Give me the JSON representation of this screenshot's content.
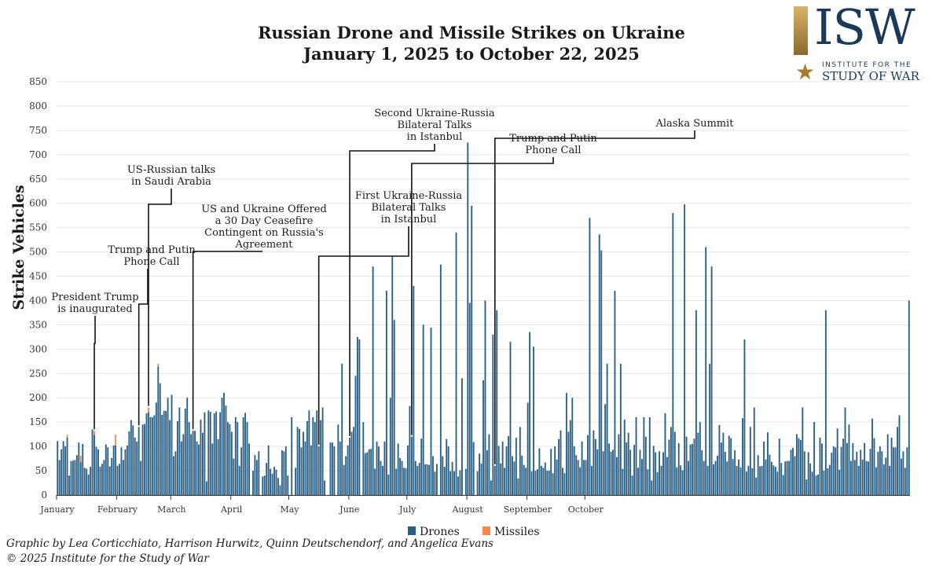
{
  "logo": {
    "letters": "ISW",
    "line1": "INSTITUTE FOR THE",
    "line2": "STUDY OF WAR",
    "star": "★"
  },
  "credits": {
    "line1": "Graphic by Lea Corticchiato, Harrison Hurwitz, Quinn Deutschendorf, and Angelica Evans",
    "line2": "© 2025 Institute for the Study of War"
  },
  "colors": {
    "drones": "#2a5f85",
    "missiles": "#f58a4c",
    "grid": "#e6e6e6"
  },
  "chart_data": {
    "type": "bar",
    "stacked": true,
    "title": [
      "Russian Drone and Missile Strikes on Ukraine",
      "January 1, 2025 to October 22, 2025"
    ],
    "xlabel": "",
    "ylabel": "Strike Vehicles",
    "ylim": [
      0,
      850
    ],
    "yticks": [
      0,
      50,
      100,
      150,
      200,
      250,
      300,
      350,
      400,
      450,
      500,
      550,
      600,
      650,
      700,
      750,
      800,
      850
    ],
    "start_date": "2025-01-01",
    "end_date": "2025-10-22",
    "month_labels": [
      {
        "label": "January",
        "day": 0
      },
      {
        "label": "February",
        "day": 31
      },
      {
        "label": "March",
        "day": 59
      },
      {
        "label": "April",
        "day": 90
      },
      {
        "label": "May",
        "day": 120
      },
      {
        "label": "June",
        "day": 151
      },
      {
        "label": "July",
        "day": 181
      },
      {
        "label": "August",
        "day": 212
      },
      {
        "label": "September",
        "day": 243
      },
      {
        "label": "October",
        "day": 273
      }
    ],
    "legend": [
      {
        "name": "Drones",
        "color": "#2a5f85"
      },
      {
        "name": "Missiles",
        "color": "#f58a4c"
      }
    ],
    "legend_position": "bottom-center",
    "series": [
      {
        "name": "Drones",
        "values": [
          111,
          72,
          94,
          111,
          100,
          118,
          40,
          70,
          70,
          72,
          82,
          108,
          68,
          105,
          56,
          54,
          42,
          58,
          135,
          124,
          99,
          94,
          58,
          64,
          72,
          104,
          98,
          59,
          76,
          102,
          102,
          60,
          64,
          98,
          72,
          94,
          102,
          131,
          154,
          143,
          118,
          110,
          140,
          70,
          145,
          146,
          168,
          170,
          160,
          160,
          164,
          190,
          264,
          230,
          165,
          173,
          173,
          200,
          154,
          206,
          80,
          90,
          152,
          180,
          110,
          125,
          178,
          200,
          150,
          125,
          132,
          132,
          110,
          104,
          155,
          128,
          170,
          28,
          174,
          171,
          106,
          168,
          172,
          115,
          170,
          200,
          210,
          184,
          150,
          146,
          130,
          75,
          160,
          150,
          60,
          98,
          160,
          169,
          150,
          106,
          0,
          50,
          82,
          72,
          90,
          0,
          38,
          40,
          66,
          102,
          54,
          44,
          58,
          52,
          35,
          20,
          92,
          90,
          100,
          40,
          0,
          160,
          0,
          56,
          140,
          136,
          98,
          130,
          110,
          152,
          174,
          102,
          160,
          150,
          174,
          100,
          154,
          180,
          30,
          0,
          0,
          108,
          108,
          100,
          0,
          145,
          110,
          270,
          62,
          80,
          102,
          118,
          130,
          140,
          245,
          325,
          320,
          0,
          150,
          86,
          88,
          94,
          95,
          470,
          54,
          110,
          100,
          70,
          60,
          110,
          420,
          42,
          200,
          490,
          360,
          54,
          106,
          76,
          70,
          56,
          55,
          102,
          183,
          120,
          430,
          70,
          60,
          66,
          116,
          350,
          63,
          63,
          62,
          344,
          80,
          48,
          64,
          0,
          474,
          80,
          58,
          115,
          100,
          49,
          68,
          49,
          540,
          38,
          51,
          240,
          0,
          54,
          725,
          395,
          595,
          109,
          0,
          49,
          85,
          65,
          236,
          400,
          92,
          125,
          30,
          330,
          60,
          380,
          101,
          65,
          110,
          56,
          100,
          121,
          315,
          80,
          69,
          118,
          34,
          140,
          81,
          62,
          56,
          190,
          335,
          49,
          305,
          50,
          53,
          96,
          60,
          56,
          67,
          50,
          50,
          95,
          45,
          100,
          73,
          115,
          133,
          56,
          45,
          210,
          130,
          154,
          200,
          100,
          82,
          72,
          57,
          110,
          72,
          72,
          123,
          570,
          60,
          133,
          115,
          94,
          536,
          503,
          90,
          187,
          270,
          106,
          89,
          93,
          420,
          78,
          125,
          270,
          54,
          155,
          108,
          128,
          93,
          40,
          103,
          160,
          56,
          93,
          74,
          160,
          120,
          53,
          160,
          30,
          101,
          88,
          47,
          90,
          60,
          88,
          168,
          78,
          114,
          140,
          580,
          130,
          57,
          107,
          61,
          51,
          598,
          120,
          70,
          104,
          105,
          116,
          380,
          128,
          150,
          92,
          70,
          510,
          60,
          270,
          470,
          63,
          70,
          81,
          144,
          108,
          128,
          89,
          69,
          122,
          117,
          74,
          92,
          60,
          73,
          57,
          158,
          320,
          48,
          60,
          140,
          55,
          180,
          36,
          82,
          59,
          60,
          110,
          73,
          129,
          83,
          68,
          61,
          58,
          48,
          116,
          66,
          41,
          69,
          70,
          70,
          93,
          97,
          80,
          125,
          117,
          113,
          180,
          90,
          32,
          88,
          65,
          48,
          150,
          40,
          42,
          118,
          106,
          50,
          380,
          55,
          62,
          87,
          100,
          98,
          137,
          52,
          99,
          116,
          180,
          107,
          145,
          70,
          107,
          72,
          89,
          60,
          93,
          73,
          107,
          70,
          69,
          95,
          157,
          117,
          57,
          89,
          100,
          90,
          63,
          77,
          125,
          60,
          118,
          98,
          98,
          140,
          164,
          75,
          90,
          56,
          98,
          400
        ]
      },
      {
        "name": "Missiles",
        "values": [
          0,
          0,
          0,
          0,
          0,
          6,
          0,
          0,
          2,
          0,
          0,
          0,
          13,
          0,
          0,
          0,
          0,
          0,
          0,
          8,
          0,
          0,
          0,
          0,
          0,
          0,
          0,
          0,
          0,
          0,
          22,
          0,
          0,
          0,
          0,
          0,
          0,
          0,
          0,
          0,
          0,
          0,
          0,
          0,
          0,
          0,
          0,
          10,
          0,
          0,
          0,
          0,
          6,
          0,
          0,
          0,
          0,
          0,
          0,
          0,
          0,
          0,
          0,
          0,
          0,
          0,
          0,
          0,
          0,
          0,
          0,
          0,
          0,
          0,
          0,
          0,
          0,
          0,
          0,
          0,
          0,
          0,
          0,
          0,
          0,
          0,
          0,
          0,
          0,
          0,
          0,
          0,
          0,
          0,
          0,
          0,
          0,
          0,
          0,
          0,
          0,
          0,
          0,
          0,
          0,
          0,
          0,
          0,
          0,
          0,
          0,
          0,
          0,
          0,
          0,
          0,
          0,
          0,
          0,
          0,
          0,
          0,
          0,
          0,
          0,
          0,
          0,
          0,
          0,
          0,
          0,
          0,
          0,
          0,
          0,
          0,
          0,
          0,
          0,
          0,
          0,
          0,
          0,
          0,
          0,
          0,
          0,
          0,
          0,
          0,
          0,
          0,
          0,
          0,
          0,
          0,
          0,
          0,
          0,
          0,
          0,
          0,
          0,
          0,
          0,
          0,
          0,
          0,
          0,
          0,
          0,
          0,
          0,
          0,
          0,
          0,
          0,
          0,
          0,
          0,
          0,
          0,
          0,
          0,
          0,
          0,
          0,
          0,
          0,
          0,
          0,
          0,
          0,
          0,
          0,
          0,
          0,
          0,
          0,
          0,
          0,
          0,
          0,
          0,
          0,
          0,
          0,
          0,
          0,
          0,
          0,
          0,
          0,
          0,
          0,
          0,
          0,
          0,
          0,
          0,
          0,
          0,
          0,
          0,
          0,
          0,
          0,
          0,
          0,
          0,
          0,
          0,
          0,
          0,
          0,
          0,
          0,
          0,
          0,
          0,
          0,
          0,
          0,
          0,
          0,
          0,
          0,
          0,
          0,
          0,
          0,
          0,
          0,
          0,
          0,
          0,
          0,
          0,
          0,
          0,
          0,
          0,
          0,
          0,
          0,
          0,
          0,
          0,
          0,
          0,
          0,
          0,
          0,
          0,
          0,
          0,
          0,
          0,
          0,
          0,
          0,
          0,
          0,
          0,
          0,
          0,
          0,
          0,
          0,
          0,
          0,
          0,
          0,
          0,
          0,
          0,
          0,
          0,
          0,
          0,
          0,
          0,
          0,
          0,
          0,
          0,
          0,
          0,
          0,
          0,
          0,
          0,
          0,
          0,
          0,
          0,
          0,
          0,
          0,
          0,
          0,
          0,
          0,
          0,
          0,
          0,
          0,
          0,
          0,
          0,
          0,
          0,
          0,
          0,
          0,
          0,
          0,
          0,
          0,
          0,
          0,
          0,
          0,
          0,
          0,
          0,
          0,
          0,
          0,
          0,
          0,
          0,
          0,
          0,
          0,
          0,
          0,
          0,
          0,
          0,
          0,
          0,
          0,
          0,
          0,
          0,
          0,
          0,
          0,
          0,
          0,
          0,
          0,
          0,
          0,
          0,
          0,
          0,
          0,
          0,
          0,
          0,
          0,
          0,
          0,
          0,
          0,
          0,
          0,
          0,
          0,
          0,
          0,
          0,
          0,
          0,
          0,
          0,
          0,
          0,
          0,
          0,
          0,
          0,
          0,
          0,
          0,
          0,
          0,
          0,
          0,
          0,
          0,
          0,
          0,
          0,
          0,
          0,
          0,
          0,
          0,
          0,
          0,
          0,
          0,
          0,
          0,
          0,
          0,
          0,
          0,
          0,
          0,
          0,
          0,
          0,
          0,
          0,
          0,
          0,
          0,
          0
        ]
      }
    ],
    "annotations": [
      {
        "lines": [
          "President Trump",
          "is inaugurated"
        ],
        "day": 19
      },
      {
        "lines": [
          "Trump and Putin",
          "Phone Call"
        ],
        "day": 42
      },
      {
        "lines": [
          "US-Russian talks",
          "in Saudi Arabia"
        ],
        "day": 47
      },
      {
        "lines": [
          "US and Ukraine Offered",
          "a 30 Day Ceasefire",
          "Contingent on Russia's",
          "Agreement"
        ],
        "day": 70
      },
      {
        "lines": [
          "First Ukraine-Russia",
          "Bilateral Talks",
          "in Istanbul"
        ],
        "day": 135
      },
      {
        "lines": [
          "Second Ukraine-Russia",
          "Bilateral Talks",
          "in Istanbul"
        ],
        "day": 151
      },
      {
        "lines": [
          "Trump and Putin",
          "Phone Call"
        ],
        "day": 183
      },
      {
        "lines": [
          "Alaska Summit"
        ],
        "day": 226
      }
    ]
  }
}
